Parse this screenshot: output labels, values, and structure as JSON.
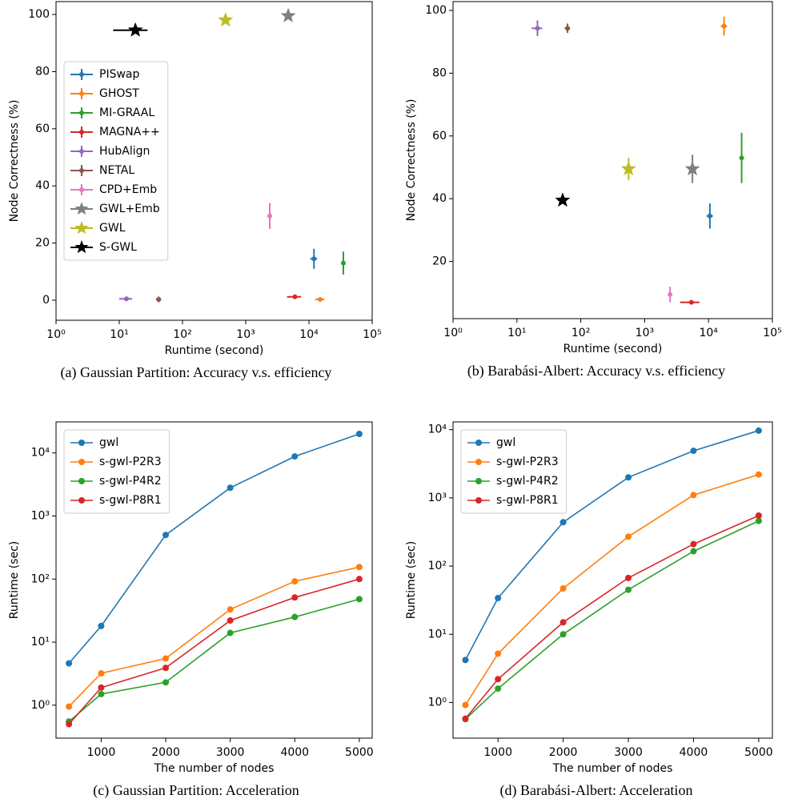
{
  "chart_data": [
    {
      "type": "scatter",
      "caption": "(a)  Gaussian Partition: Accuracy v.s. efficiency",
      "xlabel": "Runtime (second)",
      "ylabel": "Node Correctness (%)",
      "xlog": true,
      "xlim": [
        1,
        100000
      ],
      "ylim": [
        -7,
        104.5
      ],
      "xticks": [
        {
          "value": 1,
          "label": "10⁰"
        },
        {
          "value": 10,
          "label": "10¹"
        },
        {
          "value": 100,
          "label": "10²"
        },
        {
          "value": 1000,
          "label": "10³"
        },
        {
          "value": 10000,
          "label": "10⁴"
        },
        {
          "value": 100000,
          "label": "10⁵"
        }
      ],
      "yticks": [
        0,
        20,
        40,
        60,
        80,
        100
      ],
      "legend": "center left",
      "series": [
        {
          "name": "PISwap",
          "color": "#1f77b4",
          "marker": "dot",
          "x": [
            12000
          ],
          "values": [
            14.5
          ],
          "yerr": [
            3.5
          ],
          "xerr": [
            1500
          ]
        },
        {
          "name": "GHOST",
          "color": "#ff7f0e",
          "marker": "dot",
          "x": [
            15000
          ],
          "values": [
            0.3
          ],
          "yerr": [
            0.5
          ],
          "xerr": [
            2500
          ]
        },
        {
          "name": "MI-GRAAL",
          "color": "#2ca02c",
          "marker": "dot",
          "x": [
            35000
          ],
          "values": [
            13
          ],
          "yerr": [
            4
          ],
          "xerr": [
            0
          ]
        },
        {
          "name": "MAGNA++",
          "color": "#d62728",
          "marker": "dot",
          "x": [
            6000
          ],
          "values": [
            1.2
          ],
          "yerr": [
            0.5
          ],
          "xerr": [
            1500
          ]
        },
        {
          "name": "HubAlign",
          "color": "#9467bd",
          "marker": "dot",
          "x": [
            13
          ],
          "values": [
            0.5
          ],
          "yerr": [
            0.8
          ],
          "xerr": [
            3
          ]
        },
        {
          "name": "NETAL",
          "color": "#8c564b",
          "marker": "dot",
          "x": [
            42
          ],
          "values": [
            0.3
          ],
          "yerr": [
            1
          ],
          "xerr": [
            4
          ]
        },
        {
          "name": "CPD+Emb",
          "color": "#e377c2",
          "marker": "dot",
          "x": [
            2400
          ],
          "values": [
            29.5
          ],
          "yerr": [
            4.5
          ],
          "xerr": [
            0
          ]
        },
        {
          "name": "GWL+Emb",
          "color": "#7f7f7f",
          "marker": "star",
          "x": [
            4700
          ],
          "values": [
            99.5
          ],
          "yerr": [
            0
          ],
          "xerr": [
            0
          ]
        },
        {
          "name": "GWL",
          "color": "#bcbd22",
          "marker": "star",
          "x": [
            480
          ],
          "values": [
            98
          ],
          "yerr": [
            0
          ],
          "xerr": [
            0
          ]
        },
        {
          "name": "S-GWL",
          "color": "#000000",
          "marker": "star",
          "x": [
            18
          ],
          "values": [
            94.5
          ],
          "yerr": [
            0
          ],
          "xerr": [
            10
          ]
        }
      ]
    },
    {
      "type": "scatter",
      "caption": "(b)  Barabási-Albert: Accuracy v.s. efficiency",
      "xlabel": "Runtime (second)",
      "ylabel": "Node Correctness (%)",
      "xlog": true,
      "xlim": [
        1,
        100000
      ],
      "ylim": [
        1.8,
        102.8
      ],
      "xticks": [
        {
          "value": 1,
          "label": "10⁰"
        },
        {
          "value": 10,
          "label": "10¹"
        },
        {
          "value": 100,
          "label": "10²"
        },
        {
          "value": 1000,
          "label": "10³"
        },
        {
          "value": 10000,
          "label": "10⁴"
        },
        {
          "value": 100000,
          "label": "10⁵"
        }
      ],
      "yticks": [
        20,
        40,
        60,
        80,
        100
      ],
      "series": [
        {
          "color": "#1f77b4",
          "marker": "dot",
          "x": [
            10500
          ],
          "values": [
            34.5
          ],
          "yerr": [
            4
          ],
          "xerr": [
            1200
          ]
        },
        {
          "color": "#ff7f0e",
          "marker": "dot",
          "x": [
            17500
          ],
          "values": [
            95
          ],
          "yerr": [
            3
          ],
          "xerr": [
            2000
          ]
        },
        {
          "color": "#2ca02c",
          "marker": "dot",
          "x": [
            33000
          ],
          "values": [
            53
          ],
          "yerr": [
            8
          ],
          "xerr": [
            0
          ]
        },
        {
          "color": "#d62728",
          "marker": "dot",
          "x": [
            5400
          ],
          "values": [
            7
          ],
          "yerr": [
            0.5
          ],
          "xerr": [
            1800
          ]
        },
        {
          "color": "#9467bd",
          "marker": "dot",
          "x": [
            21
          ],
          "values": [
            94.3
          ],
          "yerr": [
            2.5
          ],
          "xerr": [
            4
          ]
        },
        {
          "color": "#8c564b",
          "marker": "dot",
          "x": [
            62
          ],
          "values": [
            94.3
          ],
          "yerr": [
            1.5
          ],
          "xerr": [
            6
          ]
        },
        {
          "color": "#e377c2",
          "marker": "dot",
          "x": [
            2500
          ],
          "values": [
            9.5
          ],
          "yerr": [
            2.5
          ],
          "xerr": [
            0
          ]
        },
        {
          "color": "#7f7f7f",
          "marker": "star",
          "x": [
            5600
          ],
          "values": [
            49.5
          ],
          "yerr": [
            4.5
          ],
          "xerr": [
            600
          ]
        },
        {
          "color": "#bcbd22",
          "marker": "star",
          "x": [
            560
          ],
          "values": [
            49.5
          ],
          "yerr": [
            3.5
          ],
          "xerr": [
            80
          ]
        },
        {
          "color": "#000000",
          "marker": "star",
          "x": [
            52
          ],
          "values": [
            39.5
          ],
          "yerr": [
            0
          ],
          "xerr": [
            8
          ]
        }
      ]
    },
    {
      "type": "line",
      "caption": "(c)  Gaussian Partition: Acceleration",
      "xlabel": "The number of nodes",
      "ylabel": "Runtime (sec)",
      "ylog": true,
      "xlim": [
        300,
        5200
      ],
      "ylim": [
        0.3,
        31000
      ],
      "xticks": [
        1000,
        2000,
        3000,
        4000,
        5000
      ],
      "yticks": [
        {
          "value": 1,
          "label": "10⁰"
        },
        {
          "value": 10,
          "label": "10¹"
        },
        {
          "value": 100,
          "label": "10²"
        },
        {
          "value": 1000,
          "label": "10³"
        },
        {
          "value": 10000,
          "label": "10⁴"
        }
      ],
      "legend": "upper left",
      "x": [
        500,
        1000,
        2000,
        3000,
        4000,
        5000
      ],
      "series": [
        {
          "name": "gwl",
          "color": "#1f77b4",
          "values": [
            4.6,
            18,
            500,
            2800,
            8800,
            20000
          ]
        },
        {
          "name": "s-gwl-P2R3",
          "color": "#ff7f0e",
          "values": [
            0.95,
            3.2,
            5.5,
            33,
            92,
            155
          ]
        },
        {
          "name": "s-gwl-P4R2",
          "color": "#2ca02c",
          "values": [
            0.55,
            1.5,
            2.3,
            14,
            25,
            48
          ]
        },
        {
          "name": "s-gwl-P8R1",
          "color": "#d62728",
          "values": [
            0.5,
            1.9,
            3.9,
            22,
            51,
            100
          ]
        }
      ]
    },
    {
      "type": "line",
      "caption": "(d)  Barabási-Albert: Acceleration",
      "xlabel": "The number of nodes",
      "ylabel": "Runtime (sec)",
      "ylog": true,
      "xlim": [
        310,
        5210
      ],
      "ylim": [
        0.3,
        13000
      ],
      "xticks": [
        1000,
        2000,
        3000,
        4000,
        5000
      ],
      "yticks": [
        {
          "value": 1,
          "label": "10⁰"
        },
        {
          "value": 10,
          "label": "10¹"
        },
        {
          "value": 100,
          "label": "10²"
        },
        {
          "value": 1000,
          "label": "10³"
        },
        {
          "value": 10000,
          "label": "10⁴"
        }
      ],
      "legend": "upper left",
      "x": [
        500,
        1000,
        2000,
        3000,
        4000,
        5000
      ],
      "series": [
        {
          "name": "gwl",
          "color": "#1f77b4",
          "values": [
            4.2,
            34,
            440,
            2000,
            4900,
            9700
          ]
        },
        {
          "name": "s-gwl-P2R3",
          "color": "#ff7f0e",
          "values": [
            0.92,
            5.2,
            47,
            270,
            1100,
            2200
          ]
        },
        {
          "name": "s-gwl-P4R2",
          "color": "#2ca02c",
          "values": [
            0.57,
            1.6,
            10,
            45,
            165,
            460
          ]
        },
        {
          "name": "s-gwl-P8R1",
          "color": "#d62728",
          "values": [
            0.58,
            2.2,
            15,
            67,
            210,
            550
          ]
        }
      ]
    }
  ]
}
